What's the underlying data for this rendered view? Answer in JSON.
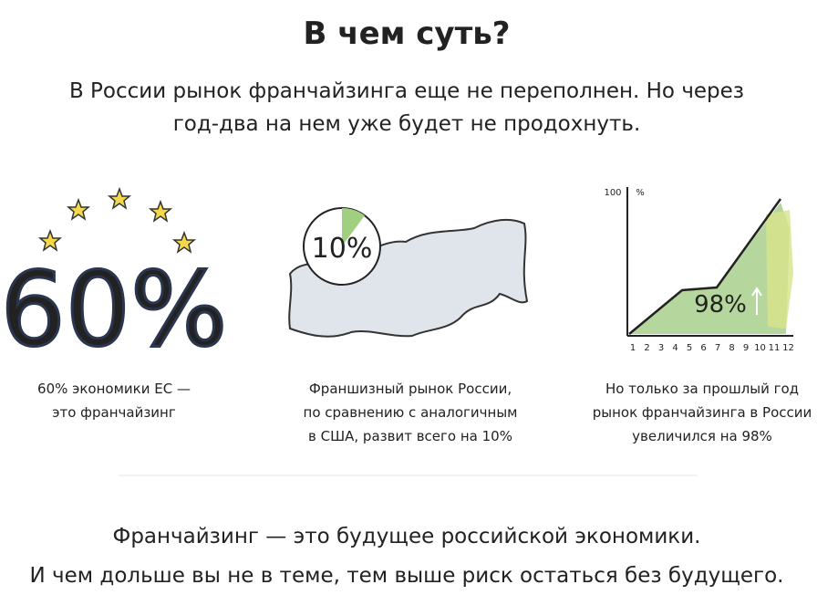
{
  "header": {
    "title": "В чем суть?",
    "intro": [
      "В России рынок франчайзинга еще не переполнен. Но через",
      "год-два на нем уже будет не продохнуть."
    ]
  },
  "cards": [
    {
      "figure": "60%",
      "caption": [
        "60% экономики ЕС —",
        "это франчайзинг"
      ]
    },
    {
      "figure": "10%",
      "caption": [
        "Франшизный рынок России,",
        "по сравнению с аналогичным",
        "в США, развит всего на 10%"
      ]
    },
    {
      "figure": "98%",
      "axis_top": "100",
      "axis_unit": "%",
      "x_ticks": [
        1,
        2,
        3,
        4,
        5,
        6,
        7,
        8,
        9,
        10,
        11,
        12
      ],
      "caption": [
        "Но только за прошлый год",
        "рынок франчайзинга в России",
        "увеличился на 98%"
      ]
    }
  ],
  "footer": [
    "Франчайзинг — это будущее российской экономики.",
    "И чем дольше вы не в теме, тем выше риск остаться без будущего."
  ]
}
